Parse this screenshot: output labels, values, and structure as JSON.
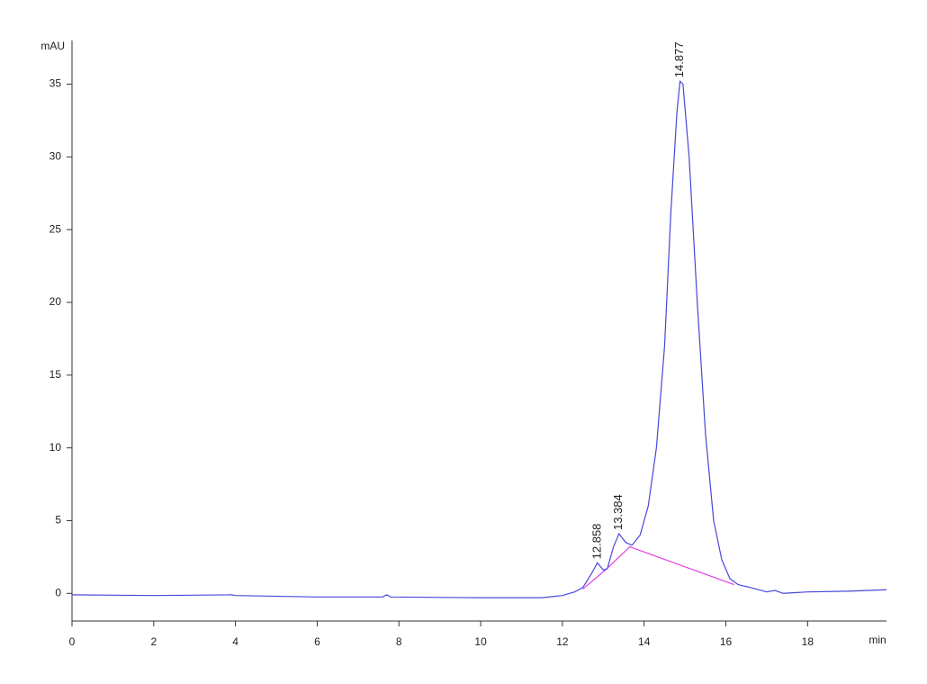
{
  "chart_data": {
    "type": "line",
    "ylabel": "mAU",
    "xlabel": "min",
    "xlim": [
      0,
      19.93
    ],
    "ylim": [
      -1.9,
      38
    ],
    "xticks": [
      0,
      2,
      4,
      6,
      8,
      10,
      12,
      14,
      16,
      18
    ],
    "yticks": [
      0,
      5,
      10,
      15,
      20,
      25,
      30,
      35
    ],
    "color": "#4848d8",
    "x": [
      0,
      2,
      3.9,
      4,
      6,
      7.6,
      7.7,
      7.8,
      10,
      11.5,
      12,
      12.3,
      12.5,
      12.7,
      12.858,
      13.0,
      13.1,
      13.25,
      13.384,
      13.55,
      13.7,
      13.9,
      14.1,
      14.3,
      14.5,
      14.65,
      14.8,
      14.877,
      14.95,
      15.1,
      15.3,
      15.5,
      15.7,
      15.9,
      16.1,
      16.3,
      16.6,
      17.0,
      17.2,
      17.4,
      18,
      19,
      19.93
    ],
    "values": [
      -0.1,
      -0.15,
      -0.1,
      -0.15,
      -0.25,
      -0.25,
      -0.1,
      -0.25,
      -0.3,
      -0.3,
      -0.15,
      0.1,
      0.4,
      1.3,
      2.1,
      1.6,
      1.7,
      3.2,
      4.1,
      3.5,
      3.3,
      4.0,
      6,
      10,
      17,
      26,
      33,
      35.2,
      35,
      30,
      20,
      11,
      5,
      2.3,
      1.0,
      0.6,
      0.4,
      0.1,
      0.2,
      0.0,
      0.1,
      0.15,
      0.25
    ],
    "baseline": {
      "color": "#e040e0",
      "x": [
        12.5,
        13.05,
        13.65,
        16.2
      ],
      "values": [
        0.3,
        1.6,
        3.2,
        0.6
      ]
    },
    "peak_labels": [
      12.858,
      13.384,
      14.877
    ]
  }
}
